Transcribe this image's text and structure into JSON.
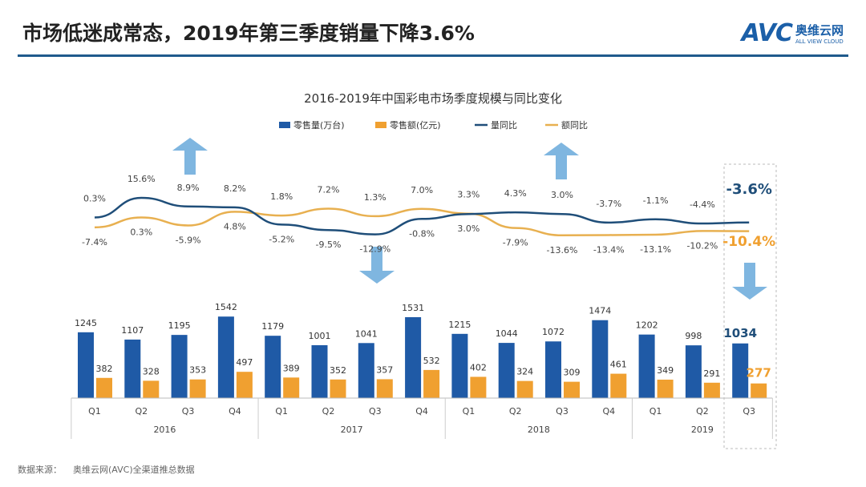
{
  "header": {
    "title": "市场低迷成常态，2019年第三季度销量下降3.6%"
  },
  "logo": {
    "mark": "AVC",
    "name": "奥维云网",
    "sub": "ALL VIEW CLOUD"
  },
  "footer": {
    "label": "数据来源：",
    "source": "奥维云网(AVC)全渠道推总数据"
  },
  "colors": {
    "volume": "#1f5aa6",
    "value": "#f0a030",
    "volume_line": "#1f4e79",
    "value_line": "#e8b050",
    "arrow": "#7fb6e0",
    "rule": "#1f5a8c"
  },
  "chart_data": {
    "type": "bar+line",
    "title": "2016-2019年中国彩电市场季度规模与同比变化",
    "legend": [
      "零售量(万台)",
      "零售额(亿元)",
      "量同比",
      "额同比"
    ],
    "legend_position": "top",
    "categories": [
      "Q1",
      "Q2",
      "Q3",
      "Q4",
      "Q1",
      "Q2",
      "Q3",
      "Q4",
      "Q1",
      "Q2",
      "Q3",
      "Q4",
      "Q1",
      "Q2",
      "Q3"
    ],
    "years": [
      {
        "label": "2016",
        "span": 4
      },
      {
        "label": "2017",
        "span": 4
      },
      {
        "label": "2018",
        "span": 4
      },
      {
        "label": "2019",
        "span": 3
      }
    ],
    "series": [
      {
        "name": "零售量(万台)",
        "type": "bar",
        "values": [
          1245,
          1107,
          1195,
          1542,
          1179,
          1001,
          1041,
          1531,
          1215,
          1044,
          1072,
          1474,
          1202,
          998,
          1034
        ]
      },
      {
        "name": "零售额(亿元)",
        "type": "bar",
        "values": [
          382,
          328,
          353,
          497,
          389,
          352,
          357,
          532,
          402,
          324,
          309,
          461,
          349,
          291,
          277
        ]
      },
      {
        "name": "量同比",
        "type": "line",
        "unit": "%",
        "values": [
          0.3,
          15.6,
          8.9,
          8.2,
          -5.2,
          -9.5,
          -12.9,
          -0.8,
          3.0,
          4.3,
          3.0,
          -3.7,
          -1.1,
          -4.4,
          -3.6
        ]
      },
      {
        "name": "额同比",
        "type": "line",
        "unit": "%",
        "values": [
          -7.4,
          0.3,
          -5.9,
          4.8,
          1.8,
          7.2,
          1.3,
          7.0,
          3.3,
          -7.9,
          -13.6,
          -13.4,
          -13.1,
          -10.2,
          -10.4
        ]
      }
    ],
    "highlight_category": "2019 Q3",
    "grid": false
  }
}
